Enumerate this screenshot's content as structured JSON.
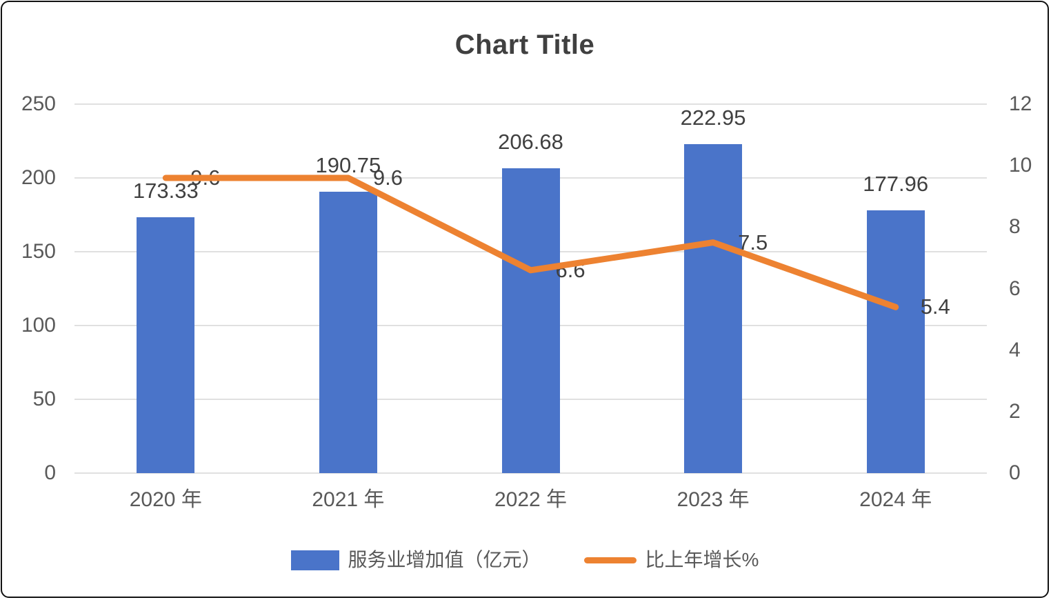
{
  "title": "Chart Title",
  "chart_data": {
    "type": "combo",
    "title": "Chart Title",
    "categories": [
      "2020 年",
      "2021 年",
      "2022 年",
      "2023 年",
      "2024 年"
    ],
    "series": [
      {
        "name": "服务业增加值（亿元）",
        "type": "bar",
        "axis": "left",
        "color": "#4a74c9",
        "values": [
          173.33,
          190.75,
          206.68,
          222.95,
          177.96
        ],
        "labels": [
          "173.33",
          "190.75",
          "206.68",
          "222.95",
          "177.96"
        ]
      },
      {
        "name": "比上年增长%",
        "type": "line",
        "axis": "right",
        "color": "#ed8231",
        "values": [
          9.6,
          9.6,
          6.6,
          7.5,
          5.4
        ],
        "labels": [
          "9.6",
          "9.6",
          "6.6",
          "7.5",
          "5.4"
        ]
      }
    ],
    "left_axis": {
      "min": 0,
      "max": 250,
      "ticks": [
        "0",
        "50",
        "100",
        "150",
        "200",
        "250"
      ]
    },
    "right_axis": {
      "min": 0,
      "max": 12,
      "ticks": [
        "0",
        "2",
        "4",
        "6",
        "8",
        "10",
        "12"
      ]
    },
    "grid": true,
    "gridline_color": "#e0e0e0",
    "legend_position": "bottom",
    "label_color": "#404040",
    "axis_text_color": "#595959"
  }
}
